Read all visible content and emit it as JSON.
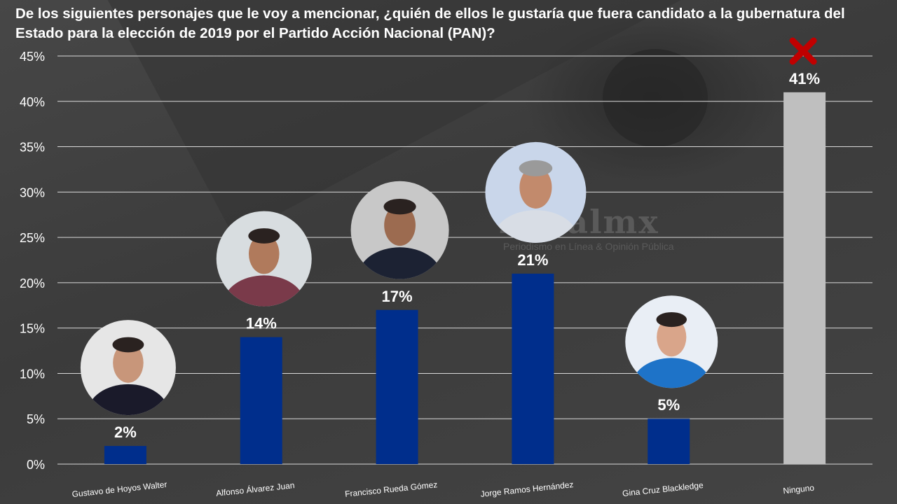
{
  "chart_data": {
    "type": "bar",
    "title": "De los siguientes personajes que le voy a mencionar, ¿quién de ellos le gustaría que fuera candidato a la gubernatura del Estado para la elección de 2019 por el Partido Acción Nacional (PAN)?",
    "categories": [
      "Gustavo de Hoyos Walter",
      "Alfonso Álvarez Juan",
      "Francisco Rueda Gómez",
      "Jorge Ramos Hernández",
      "Gina Cruz Blackledge",
      "Ninguno"
    ],
    "values": [
      2,
      14,
      17,
      21,
      5,
      41
    ],
    "data_labels": [
      "2%",
      "14%",
      "17%",
      "21%",
      "5%",
      "41%"
    ],
    "ylim": [
      0,
      45
    ],
    "yticks": [
      "0%",
      "5%",
      "10%",
      "15%",
      "20%",
      "25%",
      "30%",
      "35%",
      "40%",
      "45%"
    ],
    "grid": true,
    "colors": {
      "candidate": "#002E8C",
      "ninguno": "#BFBFBF",
      "grid": "#D9D9D9",
      "cross": "#C00000"
    }
  },
  "watermark": {
    "brand": "Zuralmx",
    "tagline": "Periodismo en Línea & Opinión Pública"
  }
}
